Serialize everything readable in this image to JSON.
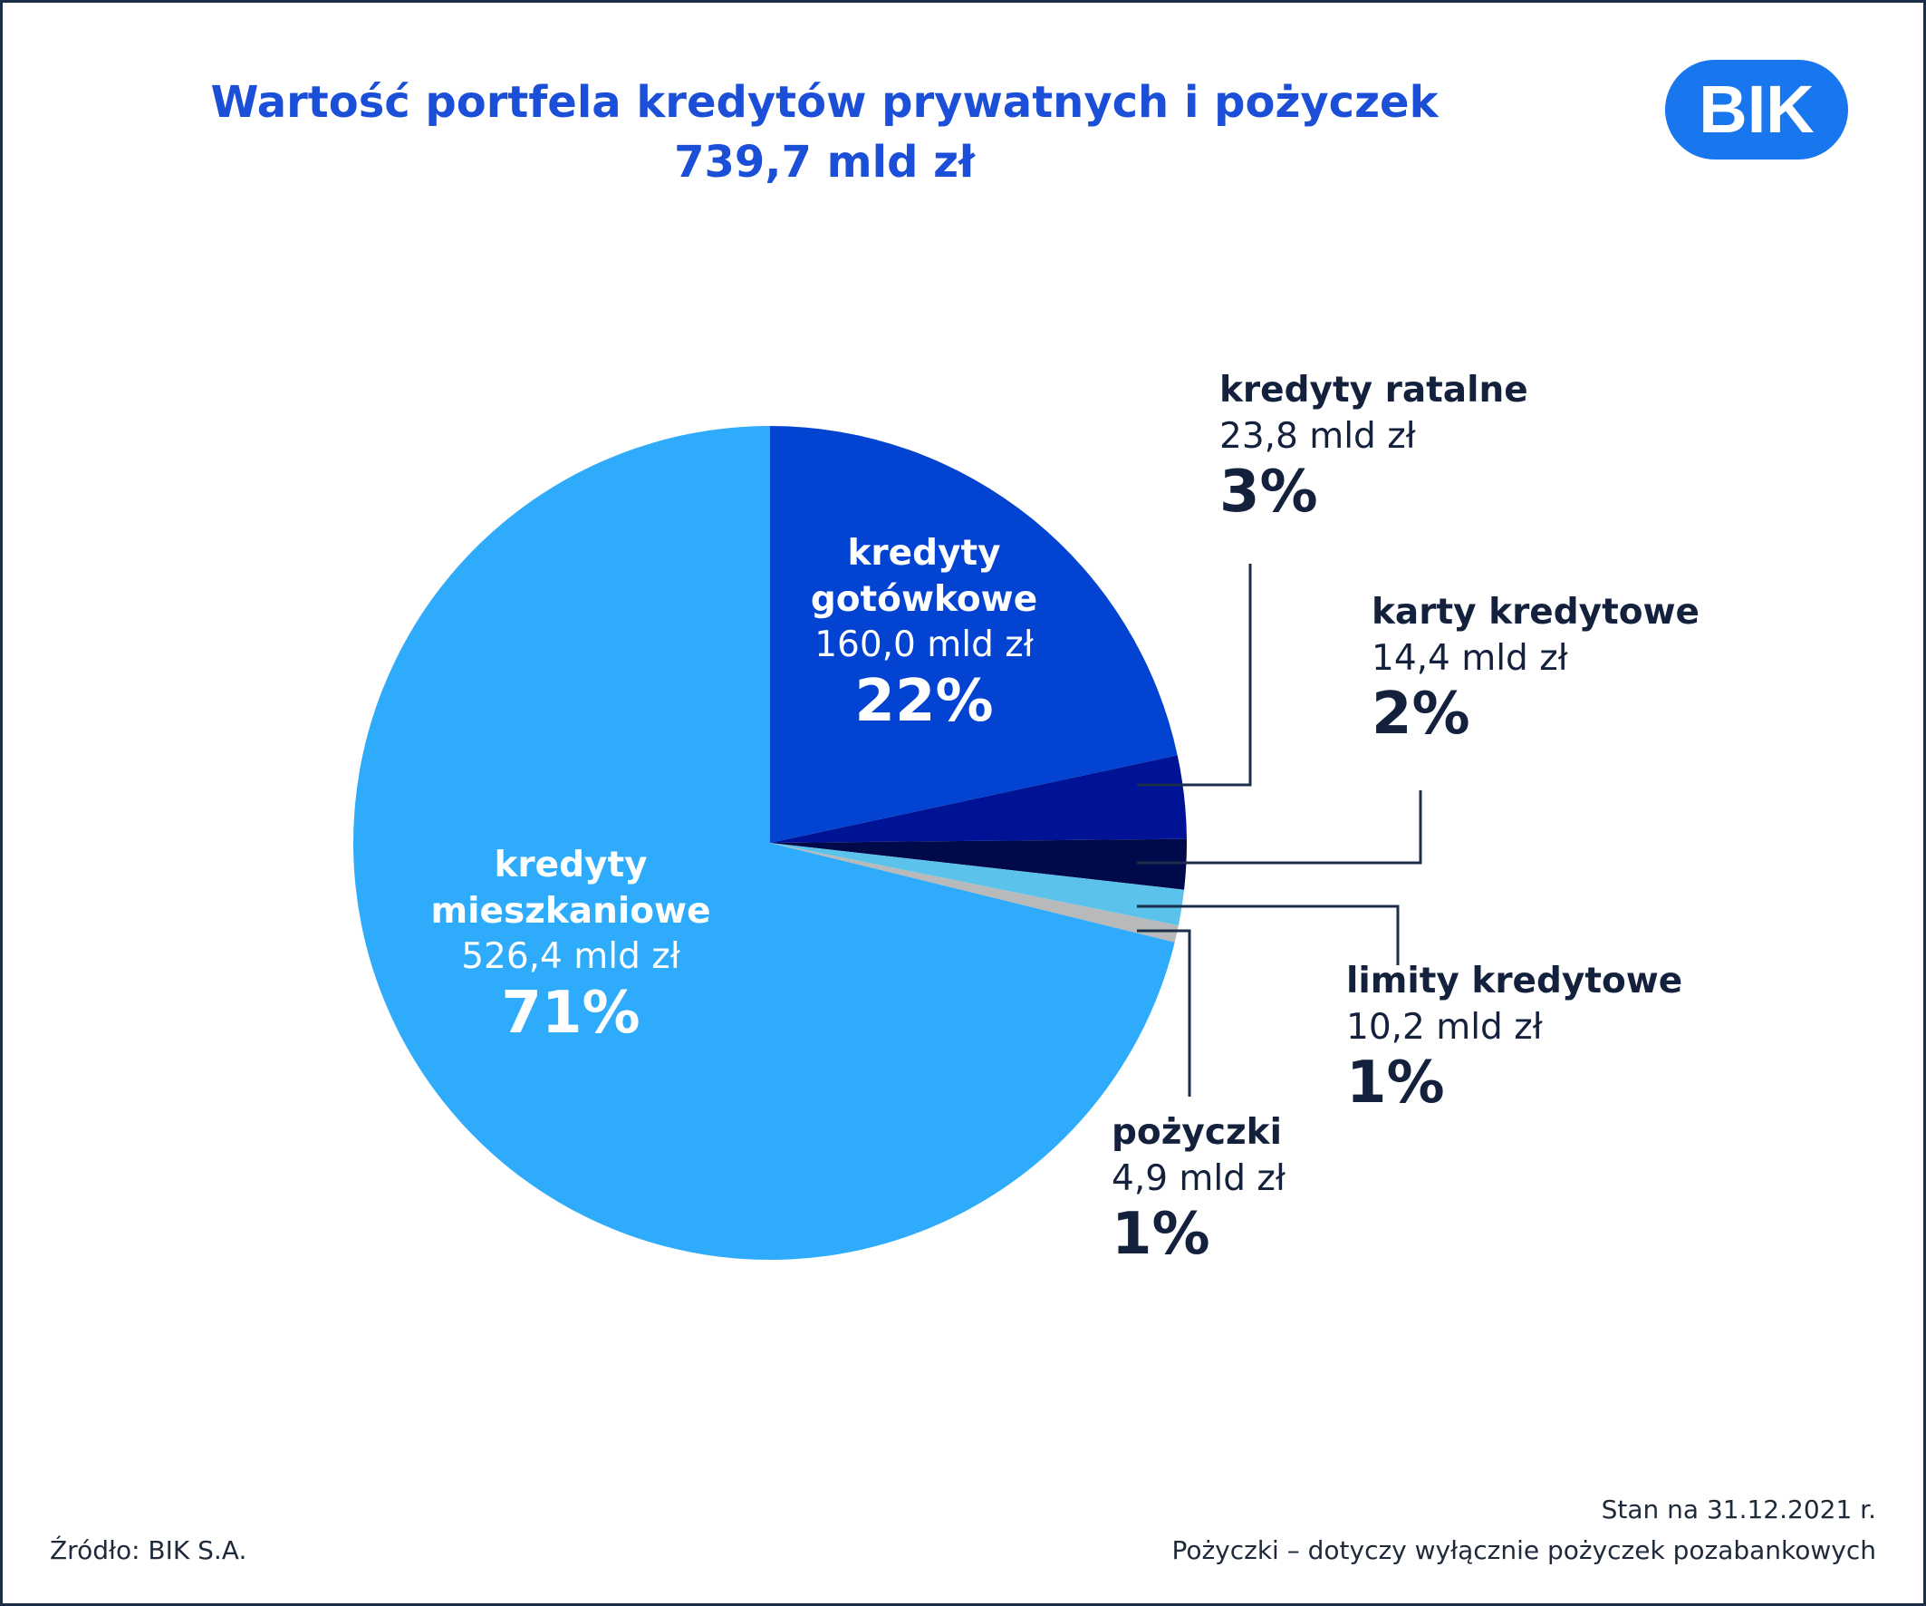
{
  "title": {
    "line1": "Wartość portfela kredytów prywatnych i pożyczek",
    "line2": "739,7 mld zł"
  },
  "logo_text": "BIK",
  "colors": {
    "title": "#1b4fd8",
    "border": "#1a2e4a",
    "text_dark": "#14213d",
    "logo": "#1877ee",
    "leader": "#1a2e4a"
  },
  "chart_data": {
    "type": "pie",
    "start_angle_deg": 0,
    "direction": "clockwise",
    "slices": [
      {
        "label_line1": "kredyty",
        "label_line2": "gotówkowe",
        "value": 160.0,
        "value_text": "160,0 mld zł",
        "percent_text": "22%",
        "color": "#0343d1"
      },
      {
        "label_line1": "kredyty ratalne",
        "label_line2": "",
        "value": 23.8,
        "value_text": "23,8 mld zł",
        "percent_text": "3%",
        "color": "#001295"
      },
      {
        "label_line1": "karty kredytowe",
        "label_line2": "",
        "value": 14.4,
        "value_text": "14,4 mld zł",
        "percent_text": "2%",
        "color": "#000a4a"
      },
      {
        "label_line1": "limity kredytowe",
        "label_line2": "",
        "value": 10.2,
        "value_text": "10,2 mld zł",
        "percent_text": "1%",
        "color": "#5bc3eb"
      },
      {
        "label_line1": "pożyczki",
        "label_line2": "",
        "value": 4.9,
        "value_text": "4,9 mld zł",
        "percent_text": "1%",
        "color": "#b7b9bb"
      },
      {
        "label_line1": "kredyty",
        "label_line2": "mieszkaniowe",
        "value": 526.4,
        "value_text": "526,4 mld zł",
        "percent_text": "71%",
        "color": "#2eabfa"
      }
    ]
  },
  "footer": {
    "source": "Źródło: BIK S.A.",
    "date": "Stan na 31.12.2021 r.",
    "note": "Pożyczki – dotyczy wyłącznie pożyczek pozabankowych"
  }
}
